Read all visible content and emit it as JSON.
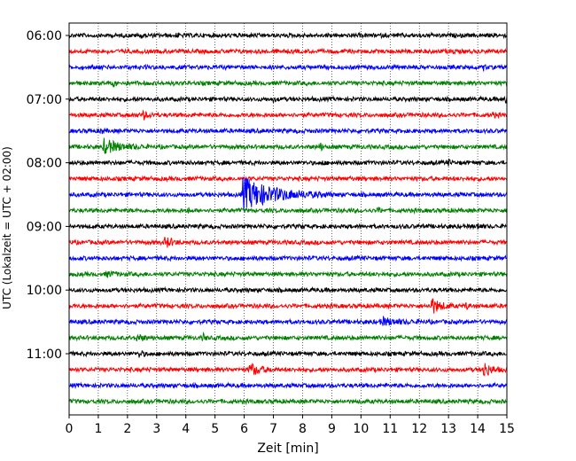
{
  "chart_data": {
    "type": "line",
    "xlabel": "Zeit  [min]",
    "ylabel": "UTC (Lokalzeit = UTC + 02:00)",
    "xlim": [
      0,
      15
    ],
    "x_ticks": [
      0,
      1,
      2,
      3,
      4,
      5,
      6,
      7,
      8,
      9,
      10,
      11,
      12,
      13,
      14,
      15
    ],
    "y_ticks": [
      "06:00",
      "07:00",
      "08:00",
      "09:00",
      "10:00",
      "11:00"
    ],
    "grid": "vertical-dotted",
    "trace_interval_min": 15,
    "trace_colors": [
      "#000000",
      "#ff0000",
      "#0000ff",
      "#008000"
    ],
    "traces": [
      {
        "start": "06:00",
        "color": "#000000",
        "events": [
          {
            "t": 2.5,
            "amp": 0.6,
            "dur": 0.1
          },
          {
            "t": 3.7,
            "amp": 0.4,
            "dur": 0.1
          }
        ]
      },
      {
        "start": "06:15",
        "color": "#ff0000",
        "events": [
          {
            "t": 13.2,
            "amp": 0.3,
            "dur": 0.1
          }
        ]
      },
      {
        "start": "06:30",
        "color": "#0000ff",
        "events": [
          {
            "t": 14.2,
            "amp": 0.3,
            "dur": 0.2
          }
        ]
      },
      {
        "start": "06:45",
        "color": "#008000",
        "events": [
          {
            "t": 1.5,
            "amp": 0.5,
            "dur": 0.2
          }
        ]
      },
      {
        "start": "07:00",
        "color": "#000000",
        "events": [
          {
            "t": 7.0,
            "amp": 0.3,
            "dur": 0.2
          },
          {
            "t": 14.95,
            "amp": 1.0,
            "dur": 0.1
          }
        ]
      },
      {
        "start": "07:15",
        "color": "#ff0000",
        "events": [
          {
            "t": 2.5,
            "amp": 0.5,
            "dur": 0.6
          },
          {
            "t": 14.5,
            "amp": 0.3,
            "dur": 0.3
          }
        ]
      },
      {
        "start": "07:30",
        "color": "#0000ff",
        "events": [
          {
            "t": 1.1,
            "amp": 0.4,
            "dur": 0.2
          }
        ]
      },
      {
        "start": "07:45",
        "color": "#008000",
        "events": [
          {
            "t": 1.2,
            "amp": 1.0,
            "dur": 1.5
          },
          {
            "t": 8.6,
            "amp": 0.6,
            "dur": 0.2
          }
        ]
      },
      {
        "start": "08:00",
        "color": "#000000",
        "events": [
          {
            "t": 8.7,
            "amp": 0.3,
            "dur": 0.1
          },
          {
            "t": 13.0,
            "amp": 0.3,
            "dur": 0.2
          }
        ]
      },
      {
        "start": "08:15",
        "color": "#ff0000",
        "events": [
          {
            "t": 9.6,
            "amp": 0.2,
            "dur": 0.1
          }
        ]
      },
      {
        "start": "08:30",
        "color": "#0000ff",
        "events": [
          {
            "t": 5.95,
            "amp": 2.3,
            "dur": 3.0
          }
        ]
      },
      {
        "start": "08:45",
        "color": "#008000",
        "events": [
          {
            "t": 4.1,
            "amp": 0.3,
            "dur": 0.1
          },
          {
            "t": 10.6,
            "amp": 0.4,
            "dur": 0.2
          }
        ]
      },
      {
        "start": "09:00",
        "color": "#000000",
        "events": [
          {
            "t": 14.0,
            "amp": 0.4,
            "dur": 0.3
          }
        ]
      },
      {
        "start": "09:15",
        "color": "#ff0000",
        "events": [
          {
            "t": 3.3,
            "amp": 0.8,
            "dur": 0.6
          }
        ]
      },
      {
        "start": "09:30",
        "color": "#0000ff",
        "events": []
      },
      {
        "start": "09:45",
        "color": "#008000",
        "events": [
          {
            "t": 1.3,
            "amp": 0.3,
            "dur": 0.8
          }
        ]
      },
      {
        "start": "10:00",
        "color": "#000000",
        "events": []
      },
      {
        "start": "10:15",
        "color": "#ff0000",
        "events": [
          {
            "t": 12.4,
            "amp": 1.2,
            "dur": 0.8
          },
          {
            "t": 13.6,
            "amp": 0.5,
            "dur": 0.2
          }
        ]
      },
      {
        "start": "10:30",
        "color": "#0000ff",
        "events": [
          {
            "t": 10.7,
            "amp": 0.5,
            "dur": 1.5
          }
        ]
      },
      {
        "start": "10:45",
        "color": "#008000",
        "events": [
          {
            "t": 2.3,
            "amp": 0.4,
            "dur": 0.8
          },
          {
            "t": 4.6,
            "amp": 0.5,
            "dur": 0.2
          }
        ]
      },
      {
        "start": "11:00",
        "color": "#000000",
        "events": [
          {
            "t": 2.4,
            "amp": 0.5,
            "dur": 0.3
          }
        ]
      },
      {
        "start": "11:15",
        "color": "#ff0000",
        "events": [
          {
            "t": 6.2,
            "amp": 0.9,
            "dur": 0.9
          },
          {
            "t": 14.2,
            "amp": 1.1,
            "dur": 0.7
          }
        ]
      },
      {
        "start": "11:30",
        "color": "#0000ff",
        "events": []
      },
      {
        "start": "11:45",
        "color": "#008000",
        "events": []
      }
    ]
  }
}
